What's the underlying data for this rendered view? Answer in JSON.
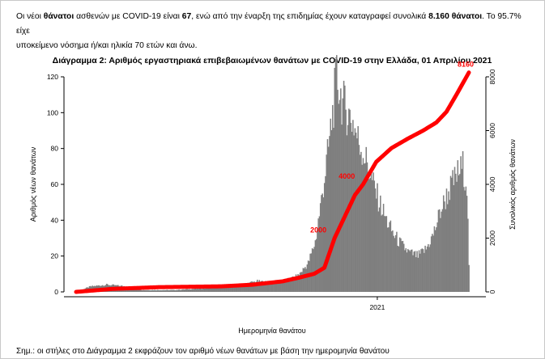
{
  "intro": {
    "p1": "Οι νέοι ",
    "p2": "θάνατοι",
    "p3": " ασθενών με COVID-19 είναι ",
    "p4": "67",
    "p5": ", ενώ από την έναρξη της επιδημίας έχουν καταγραφεί συνολικά ",
    "p6": "8.160 θάνατοι",
    "p7": ".  Το 95.7% είχε",
    "line2": "υποκείμενο νόσημα ή/και ηλικία 70 ετών και άνω."
  },
  "footnote": "Σημ.: οι στήλες στο Διάγραμμα 2 εκφράζουν τον αριθμό νέων θανάτων με βάση την ημερομηνία θανάτου",
  "chart_data": {
    "type": "bar",
    "title": "Διάγραμμα 2: Αριθμός εργαστηριακά επιβεβαιωμένων θανάτων με COVID-19 στην Ελλάδα, 01 Απριλίου 2021",
    "xlabel": "Ημερομηνία θανάτου",
    "ylabel": "Αριθμός νέων θανάτων",
    "y2label": "Συνολικός αριθμός θανάτων",
    "ylim": [
      0,
      120
    ],
    "yticks": [
      0,
      20,
      40,
      60,
      80,
      100,
      120
    ],
    "y2lim": [
      0,
      8000
    ],
    "y2ticks": [
      0,
      2000,
      4000,
      6000,
      8000
    ],
    "xtick_label": "2021",
    "x_start": "2020-03-11",
    "x_end": "2021-04-01",
    "x_tick_date": "2021-01-01",
    "bar_color": "#7f7f7f",
    "line_color": "#ff0000",
    "series": [
      {
        "name": "Αριθμός νέων θανάτων",
        "key_points": [
          [
            "2020-03-11",
            0
          ],
          [
            "2020-03-25",
            3
          ],
          [
            "2020-04-10",
            4
          ],
          [
            "2020-05-01",
            3
          ],
          [
            "2020-05-15",
            1
          ],
          [
            "2020-06-15",
            1
          ],
          [
            "2020-07-15",
            2
          ],
          [
            "2020-08-01",
            3
          ],
          [
            "2020-08-20",
            4
          ],
          [
            "2020-09-05",
            6
          ],
          [
            "2020-09-20",
            5
          ],
          [
            "2020-10-01",
            6
          ],
          [
            "2020-10-15",
            9
          ],
          [
            "2020-10-25",
            16
          ],
          [
            "2020-11-01",
            28
          ],
          [
            "2020-11-08",
            55
          ],
          [
            "2020-11-14",
            80
          ],
          [
            "2020-11-18",
            100
          ],
          [
            "2020-11-22",
            120
          ],
          [
            "2020-11-28",
            105
          ],
          [
            "2020-12-03",
            100
          ],
          [
            "2020-12-08",
            95
          ],
          [
            "2020-12-13",
            85
          ],
          [
            "2020-12-18",
            78
          ],
          [
            "2020-12-23",
            70
          ],
          [
            "2020-12-28",
            60
          ],
          [
            "2021-01-03",
            50
          ],
          [
            "2021-01-10",
            40
          ],
          [
            "2021-01-17",
            32
          ],
          [
            "2021-01-25",
            26
          ],
          [
            "2021-02-01",
            22
          ],
          [
            "2021-02-10",
            20
          ],
          [
            "2021-02-18",
            24
          ],
          [
            "2021-02-25",
            32
          ],
          [
            "2021-03-04",
            45
          ],
          [
            "2021-03-12",
            56
          ],
          [
            "2021-03-20",
            65
          ],
          [
            "2021-03-26",
            70
          ],
          [
            "2021-03-30",
            60
          ],
          [
            "2021-04-01",
            15
          ]
        ]
      },
      {
        "name": "Συνολικός αριθμός θανάτων",
        "axis": "right",
        "key_points": [
          [
            "2020-03-11",
            0
          ],
          [
            "2020-04-15",
            110
          ],
          [
            "2020-05-31",
            175
          ],
          [
            "2020-07-31",
            206
          ],
          [
            "2020-08-31",
            266
          ],
          [
            "2020-09-30",
            393
          ],
          [
            "2020-10-15",
            520
          ],
          [
            "2020-10-31",
            673
          ],
          [
            "2020-11-10",
            900
          ],
          [
            "2020-11-20",
            2000
          ],
          [
            "2020-11-30",
            2800
          ],
          [
            "2020-12-10",
            3600
          ],
          [
            "2020-12-18",
            4000
          ],
          [
            "2020-12-31",
            4838
          ],
          [
            "2021-01-15",
            5350
          ],
          [
            "2021-01-31",
            5700
          ],
          [
            "2021-02-15",
            6000
          ],
          [
            "2021-02-28",
            6300
          ],
          [
            "2021-03-10",
            6700
          ],
          [
            "2021-03-20",
            7350
          ],
          [
            "2021-04-01",
            8160
          ]
        ]
      }
    ],
    "annotations": [
      {
        "text": "8160",
        "date": "2021-04-01",
        "value": 8160
      },
      {
        "text": "4000",
        "date": "2020-12-18",
        "value": 4000
      },
      {
        "text": "2000",
        "date": "2020-11-20",
        "value": 2000
      }
    ]
  }
}
